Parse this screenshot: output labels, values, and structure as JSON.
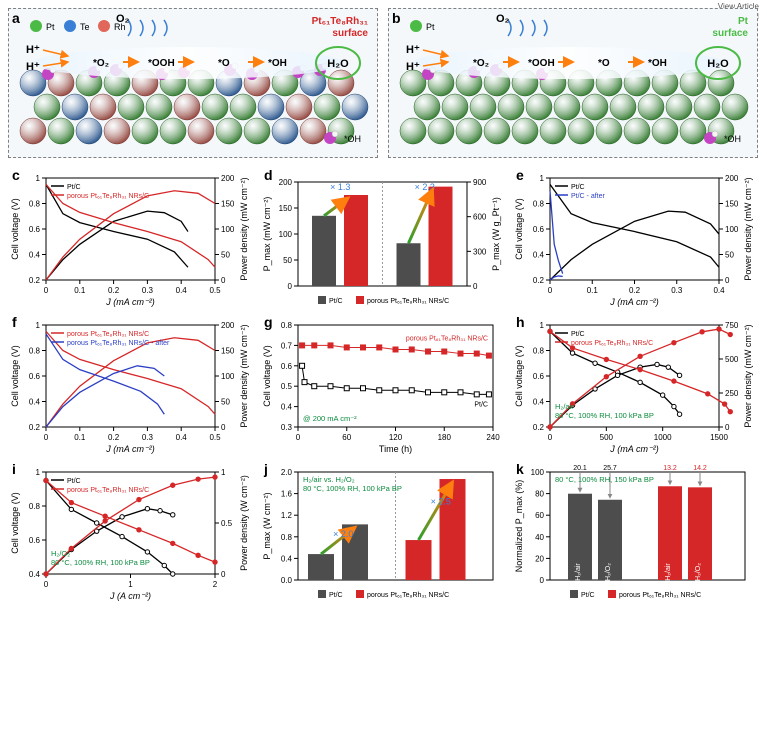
{
  "view_article": "View Article",
  "doi": "DOI: 10.1039/D2EI",
  "colors": {
    "pt": "#4bbb45",
    "te": "#3a7fd6",
    "rh": "#e1675a",
    "oh_o": "#c445c4",
    "oh_h": "#f5f5f5",
    "black": "#000000",
    "red": "#d62728",
    "blue": "#2b3fc4",
    "darkgray": "#4d4d4d",
    "green_text": "#0b8b3d",
    "arrow": "#ff7f0e"
  },
  "schematic_a": {
    "label": "a",
    "legend": {
      "pt": "Pt",
      "te": "Te",
      "rh": "Rh"
    },
    "surface": "Pt₆₁Te₈Rh₃₁\nsurface",
    "gas": "O₂",
    "side_left": "H⁺",
    "species": [
      "*O₂",
      "*OOH",
      "*O",
      "*OH"
    ],
    "product": "H₂O",
    "oh_label": "*OH"
  },
  "schematic_b": {
    "label": "b",
    "legend": {
      "pt": "Pt"
    },
    "surface": "Pt\nsurface",
    "gas": "O₂",
    "side_left": "H⁺",
    "species": [
      "*O₂",
      "*OOH",
      "*O",
      "*OH"
    ],
    "product": "H₂O",
    "oh_label": "*OH"
  },
  "panel_c": {
    "label": "c",
    "xlabel": "J (mA cm⁻²)",
    "ylabel_left": "Cell voltage (V)",
    "ylabel_right": "Power density (mW cm⁻²)",
    "xlim": [
      0.0,
      0.5
    ],
    "xticks": [
      0.0,
      0.1,
      0.2,
      0.3,
      0.4,
      0.5
    ],
    "ylim_left": [
      0.2,
      1.0
    ],
    "yticks_left": [
      0.2,
      0.4,
      0.6,
      0.8,
      1.0
    ],
    "ylim_right": [
      0,
      200
    ],
    "yticks_right": [
      0,
      50,
      100,
      150,
      200
    ],
    "series": [
      {
        "name": "Pt/C",
        "color": "#000000",
        "voltage": [
          [
            0,
            0.95
          ],
          [
            0.05,
            0.72
          ],
          [
            0.1,
            0.65
          ],
          [
            0.2,
            0.58
          ],
          [
            0.3,
            0.52
          ],
          [
            0.38,
            0.42
          ],
          [
            0.42,
            0.3
          ]
        ],
        "power": [
          [
            0,
            0
          ],
          [
            0.05,
            40
          ],
          [
            0.1,
            70
          ],
          [
            0.2,
            115
          ],
          [
            0.3,
            135
          ],
          [
            0.35,
            132
          ],
          [
            0.4,
            115
          ],
          [
            0.42,
            95
          ]
        ]
      },
      {
        "name": "porous Pt₆₁Te₈Rh₃₁ NRs/C",
        "color": "#d62728",
        "voltage": [
          [
            0,
            0.95
          ],
          [
            0.05,
            0.8
          ],
          [
            0.1,
            0.73
          ],
          [
            0.2,
            0.65
          ],
          [
            0.3,
            0.58
          ],
          [
            0.4,
            0.5
          ],
          [
            0.48,
            0.36
          ],
          [
            0.5,
            0.3
          ]
        ],
        "power": [
          [
            0,
            0
          ],
          [
            0.05,
            45
          ],
          [
            0.1,
            80
          ],
          [
            0.2,
            130
          ],
          [
            0.3,
            165
          ],
          [
            0.38,
            175
          ],
          [
            0.45,
            170
          ],
          [
            0.5,
            150
          ]
        ]
      }
    ]
  },
  "panel_d": {
    "label": "d",
    "ylabel_left": "P_max (mW cm⁻²)",
    "ylabel_right": "P_max (W g_Pt⁻¹)",
    "ylim_left": [
      0,
      200
    ],
    "yticks_left": [
      0,
      50,
      100,
      150,
      200
    ],
    "ylim_right": [
      0,
      900
    ],
    "yticks_right": [
      0,
      300,
      600,
      900
    ],
    "factor_left": "× 1.3",
    "factor_right": "× 2.3",
    "bars_left": [
      {
        "name": "Pt/C",
        "value": 135,
        "color": "#4d4d4d"
      },
      {
        "name": "porous Pt₆₁Te₈Rh₃₁ NRs/C",
        "value": 175,
        "color": "#d62728"
      }
    ],
    "bars_right_g": [
      {
        "name": "Pt/C",
        "value": 370,
        "color": "#4d4d4d"
      },
      {
        "name": "porous Pt₆₁Te₈Rh₃₁ NRs/C",
        "value": 860,
        "color": "#d62728"
      }
    ],
    "xlegend": [
      "Pt/C",
      "porous Pt₆₁Te₈Rh₃₁ NRs/C"
    ]
  },
  "panel_e": {
    "label": "e",
    "xlabel": "J (mA cm⁻²)",
    "ylabel_left": "Cell voltage (V)",
    "ylabel_right": "Power density (mW cm⁻²)",
    "xlim": [
      0.0,
      0.4
    ],
    "xticks": [
      0.0,
      0.1,
      0.2,
      0.3,
      0.4
    ],
    "ylim_left": [
      0.2,
      1.0
    ],
    "yticks_left": [
      0.2,
      0.4,
      0.6,
      0.8,
      1.0
    ],
    "ylim_right": [
      0,
      200
    ],
    "yticks_right": [
      0,
      50,
      100,
      150,
      200
    ],
    "series": [
      {
        "name": "Pt/C",
        "color": "#000000",
        "voltage": [
          [
            0,
            0.95
          ],
          [
            0.05,
            0.72
          ],
          [
            0.1,
            0.65
          ],
          [
            0.2,
            0.58
          ],
          [
            0.3,
            0.5
          ],
          [
            0.38,
            0.38
          ],
          [
            0.4,
            0.3
          ]
        ],
        "power": [
          [
            0,
            0
          ],
          [
            0.05,
            40
          ],
          [
            0.1,
            70
          ],
          [
            0.2,
            115
          ],
          [
            0.28,
            135
          ],
          [
            0.32,
            133
          ],
          [
            0.38,
            110
          ],
          [
            0.4,
            90
          ]
        ]
      },
      {
        "name": "Pt/C - after",
        "color": "#2b3fc4",
        "voltage": [
          [
            0,
            0.9
          ],
          [
            0.01,
            0.48
          ],
          [
            0.02,
            0.35
          ],
          [
            0.03,
            0.25
          ]
        ],
        "power": [
          [
            0,
            0
          ],
          [
            0.01,
            6
          ],
          [
            0.02,
            8
          ],
          [
            0.03,
            7
          ]
        ]
      }
    ]
  },
  "panel_f": {
    "label": "f",
    "xlabel": "J (mA cm⁻²)",
    "ylabel_left": "Cell voltage (V)",
    "ylabel_right": "Power density (mW cm⁻²)",
    "xlim": [
      0.0,
      0.5
    ],
    "xticks": [
      0.0,
      0.1,
      0.2,
      0.3,
      0.4,
      0.5
    ],
    "ylim_left": [
      0.2,
      1.0
    ],
    "yticks_left": [
      0.2,
      0.4,
      0.6,
      0.8,
      1.0
    ],
    "ylim_right": [
      0,
      200
    ],
    "yticks_right": [
      0,
      50,
      100,
      150,
      200
    ],
    "series": [
      {
        "name": "porous Pt₆₁Te₈Rh₃₁ NRs/C",
        "color": "#d62728",
        "voltage": [
          [
            0,
            0.95
          ],
          [
            0.05,
            0.8
          ],
          [
            0.1,
            0.73
          ],
          [
            0.2,
            0.65
          ],
          [
            0.3,
            0.58
          ],
          [
            0.4,
            0.5
          ],
          [
            0.48,
            0.36
          ],
          [
            0.5,
            0.3
          ]
        ],
        "power": [
          [
            0,
            0
          ],
          [
            0.05,
            45
          ],
          [
            0.1,
            80
          ],
          [
            0.2,
            130
          ],
          [
            0.3,
            165
          ],
          [
            0.38,
            175
          ],
          [
            0.45,
            170
          ],
          [
            0.5,
            150
          ]
        ]
      },
      {
        "name": "porous Pt₆₁Te₈Rh₃₁ NRs/C - after",
        "color": "#2b3fc4",
        "voltage": [
          [
            0,
            0.93
          ],
          [
            0.05,
            0.73
          ],
          [
            0.1,
            0.65
          ],
          [
            0.2,
            0.56
          ],
          [
            0.28,
            0.48
          ],
          [
            0.33,
            0.38
          ],
          [
            0.35,
            0.3
          ]
        ],
        "power": [
          [
            0,
            0
          ],
          [
            0.05,
            40
          ],
          [
            0.1,
            68
          ],
          [
            0.2,
            105
          ],
          [
            0.27,
            120
          ],
          [
            0.32,
            115
          ],
          [
            0.35,
            100
          ]
        ]
      }
    ]
  },
  "panel_g": {
    "label": "g",
    "xlabel": "Time (h)",
    "ylabel": "Cell voltage (V)",
    "xlim": [
      0,
      240
    ],
    "xticks": [
      0,
      60,
      120,
      180,
      240
    ],
    "ylim": [
      0.3,
      0.8
    ],
    "yticks": [
      0.3,
      0.4,
      0.5,
      0.6,
      0.7,
      0.8
    ],
    "annotation": "@ 200 mA cm⁻²",
    "series": [
      {
        "name": "porous Pt₆₁Te₈Rh₃₁ NRs/C",
        "color": "#d62728",
        "marker": "square",
        "points": [
          [
            5,
            0.7
          ],
          [
            20,
            0.7
          ],
          [
            40,
            0.7
          ],
          [
            60,
            0.69
          ],
          [
            80,
            0.69
          ],
          [
            100,
            0.69
          ],
          [
            120,
            0.68
          ],
          [
            140,
            0.68
          ],
          [
            160,
            0.67
          ],
          [
            180,
            0.67
          ],
          [
            200,
            0.66
          ],
          [
            220,
            0.66
          ],
          [
            235,
            0.65
          ]
        ]
      },
      {
        "name": "Pt/C",
        "color": "#000000",
        "marker": "square-open",
        "points": [
          [
            5,
            0.6
          ],
          [
            8,
            0.52
          ],
          [
            20,
            0.5
          ],
          [
            40,
            0.5
          ],
          [
            60,
            0.49
          ],
          [
            80,
            0.49
          ],
          [
            100,
            0.48
          ],
          [
            120,
            0.48
          ],
          [
            140,
            0.48
          ],
          [
            160,
            0.47
          ],
          [
            180,
            0.47
          ],
          [
            200,
            0.47
          ],
          [
            220,
            0.46
          ],
          [
            235,
            0.46
          ]
        ]
      }
    ]
  },
  "panel_h": {
    "label": "h",
    "xlabel": "J (mA cm⁻²)",
    "ylabel_left": "Cell voltage (V)",
    "ylabel_right": "Power density (mW cm⁻²)",
    "condition": "H₂/air\n80 °C, 100% RH, 100 kPa BP",
    "xlim": [
      0,
      1500
    ],
    "xticks": [
      0,
      500,
      1000,
      1500
    ],
    "ylim_left": [
      0.2,
      1.0
    ],
    "yticks_left": [
      0.2,
      0.4,
      0.6,
      0.8,
      1.0
    ],
    "ylim_right": [
      0,
      750
    ],
    "yticks_right": [
      0,
      250,
      500,
      750
    ],
    "series": [
      {
        "name": "Pt/C",
        "color": "#000000",
        "marker": "open",
        "voltage": [
          [
            0,
            0.95
          ],
          [
            200,
            0.78
          ],
          [
            400,
            0.7
          ],
          [
            600,
            0.63
          ],
          [
            800,
            0.55
          ],
          [
            1000,
            0.45
          ],
          [
            1100,
            0.36
          ],
          [
            1150,
            0.3
          ]
        ],
        "power": [
          [
            0,
            0
          ],
          [
            200,
            160
          ],
          [
            400,
            280
          ],
          [
            600,
            380
          ],
          [
            800,
            440
          ],
          [
            950,
            460
          ],
          [
            1050,
            440
          ],
          [
            1150,
            380
          ]
        ]
      },
      {
        "name": "porous Pt₆₁Te₈Rh₃₁ NRs/C",
        "color": "#d62728",
        "marker": "filled",
        "voltage": [
          [
            0,
            0.95
          ],
          [
            200,
            0.82
          ],
          [
            500,
            0.73
          ],
          [
            800,
            0.65
          ],
          [
            1100,
            0.56
          ],
          [
            1400,
            0.46
          ],
          [
            1550,
            0.38
          ],
          [
            1600,
            0.32
          ]
        ],
        "power": [
          [
            0,
            0
          ],
          [
            200,
            170
          ],
          [
            500,
            370
          ],
          [
            800,
            520
          ],
          [
            1100,
            620
          ],
          [
            1350,
            700
          ],
          [
            1500,
            720
          ],
          [
            1600,
            680
          ]
        ]
      }
    ]
  },
  "panel_i": {
    "label": "i",
    "xlabel": "J (A cm⁻²)",
    "ylabel_left": "Cell voltage (V)",
    "ylabel_right": "Power density (W cm⁻²)",
    "condition": "H₂/O₂\n80 °C, 100% RH, 100 kPa BP",
    "xlim": [
      0,
      2
    ],
    "xticks": [
      0,
      1,
      2
    ],
    "ylim_left": [
      0.4,
      1.0
    ],
    "yticks_left": [
      0.4,
      0.6,
      0.8,
      1.0
    ],
    "ylim_right": [
      0,
      1.0
    ],
    "yticks_right": [
      0,
      0.5,
      1.0
    ],
    "series": [
      {
        "name": "Pt/C",
        "color": "#000000",
        "marker": "open",
        "voltage": [
          [
            0,
            0.95
          ],
          [
            0.3,
            0.78
          ],
          [
            0.6,
            0.7
          ],
          [
            0.9,
            0.62
          ],
          [
            1.2,
            0.53
          ],
          [
            1.4,
            0.45
          ],
          [
            1.5,
            0.4
          ]
        ],
        "power": [
          [
            0,
            0
          ],
          [
            0.3,
            0.24
          ],
          [
            0.6,
            0.42
          ],
          [
            0.9,
            0.56
          ],
          [
            1.2,
            0.64
          ],
          [
            1.35,
            0.62
          ],
          [
            1.5,
            0.58
          ]
        ]
      },
      {
        "name": "porous Pt₆₁Te₈Rh₃₁ NRs/C",
        "color": "#d62728",
        "marker": "filled",
        "voltage": [
          [
            0,
            0.95
          ],
          [
            0.3,
            0.82
          ],
          [
            0.7,
            0.74
          ],
          [
            1.1,
            0.66
          ],
          [
            1.5,
            0.58
          ],
          [
            1.8,
            0.51
          ],
          [
            2.0,
            0.47
          ]
        ],
        "power": [
          [
            0,
            0
          ],
          [
            0.3,
            0.25
          ],
          [
            0.7,
            0.52
          ],
          [
            1.1,
            0.73
          ],
          [
            1.5,
            0.87
          ],
          [
            1.8,
            0.93
          ],
          [
            2.0,
            0.95
          ]
        ]
      }
    ]
  },
  "panel_j": {
    "label": "j",
    "ylabel": "P_max (W cm⁻²)",
    "title": "H₂/air  vs.  H₂/O₂",
    "condition": "80 °C, 100% RH, 100 kPa BP",
    "ylim": [
      0,
      2.0
    ],
    "yticks": [
      0.0,
      0.4,
      0.8,
      1.2,
      1.6,
      2.0
    ],
    "factor_left": "× 2.0",
    "factor_right": "× 2.5",
    "bars": [
      {
        "group": "Pt/C",
        "air": 0.48,
        "o2": 1.03,
        "color": "#4d4d4d"
      },
      {
        "group": "porous Pt₆₁Te₈Rh₃₁ NRs/C",
        "air": 0.74,
        "o2": 1.87,
        "color": "#d62728"
      }
    ],
    "xlegend": [
      "Pt/C",
      "porous Pt₆₁Te₈Rh₃₁ NRs/C"
    ]
  },
  "panel_k": {
    "label": "k",
    "ylabel": "Normalized P_max (%)",
    "condition": "80 °C, 100% RH, 150 kPa BP",
    "ylim": [
      0,
      100
    ],
    "yticks": [
      0,
      20,
      40,
      60,
      80,
      100
    ],
    "bars": [
      {
        "name": "Pt/C H₂/air",
        "value": 79.9,
        "drop": "20.1",
        "color": "#4d4d4d",
        "barlabel": "H₂/air"
      },
      {
        "name": "Pt/C H₂/O₂",
        "value": 74.3,
        "drop": "25.7",
        "color": "#4d4d4d",
        "barlabel": "H₂/O₂"
      },
      {
        "name": "porous H₂/air",
        "value": 86.8,
        "drop": "13.2",
        "color": "#d62728",
        "barlabel": "H₂/air"
      },
      {
        "name": "porous H₂/O₂",
        "value": 85.8,
        "drop": "14.2",
        "color": "#d62728",
        "barlabel": "H₂/O₂"
      }
    ],
    "xlegend": [
      "Pt/C",
      "porous Pt₆₁Te₈Rh₃₁ NRs/C"
    ]
  }
}
